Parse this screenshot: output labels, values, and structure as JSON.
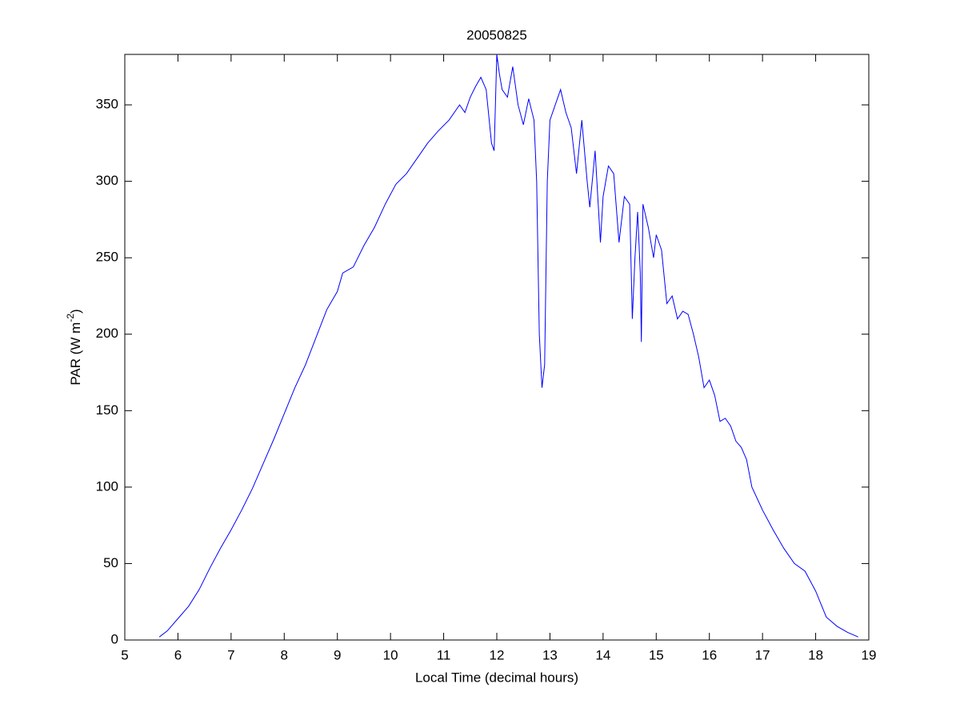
{
  "chart_data": {
    "type": "line",
    "title": "20050825",
    "xlabel": "Local Time (decimal hours)",
    "ylabel": {
      "text": "PAR (W m",
      "superscript": "-2",
      "suffix": ")"
    },
    "xlim": [
      5,
      19
    ],
    "ylim": [
      0,
      383
    ],
    "xticks": [
      5,
      6,
      7,
      8,
      9,
      10,
      11,
      12,
      13,
      14,
      15,
      16,
      17,
      18,
      19
    ],
    "yticks": [
      0,
      50,
      100,
      150,
      200,
      250,
      300,
      350
    ],
    "grid": false,
    "series": [
      {
        "color": "#0000ff",
        "x": [
          5.65,
          5.8,
          6.0,
          6.2,
          6.4,
          6.6,
          6.8,
          7.0,
          7.2,
          7.4,
          7.6,
          7.8,
          8.0,
          8.2,
          8.4,
          8.6,
          8.8,
          9.0,
          9.1,
          9.3,
          9.5,
          9.7,
          9.9,
          10.1,
          10.3,
          10.5,
          10.7,
          10.9,
          11.1,
          11.3,
          11.4,
          11.5,
          11.6,
          11.7,
          11.8,
          11.9,
          11.95,
          12.0,
          12.05,
          12.1,
          12.2,
          12.3,
          12.4,
          12.5,
          12.6,
          12.7,
          12.75,
          12.8,
          12.85,
          12.9,
          12.95,
          13.0,
          13.1,
          13.2,
          13.3,
          13.4,
          13.5,
          13.6,
          13.7,
          13.75,
          13.85,
          13.95,
          14.0,
          14.1,
          14.2,
          14.3,
          14.4,
          14.5,
          14.55,
          14.6,
          14.65,
          14.7,
          14.72,
          14.75,
          14.85,
          14.95,
          15.0,
          15.1,
          15.2,
          15.3,
          15.4,
          15.5,
          15.6,
          15.7,
          15.8,
          15.9,
          16.0,
          16.1,
          16.2,
          16.3,
          16.4,
          16.5,
          16.6,
          16.7,
          16.8,
          17.0,
          17.2,
          17.4,
          17.6,
          17.8,
          18.0,
          18.2,
          18.4,
          18.6,
          18.8
        ],
        "values": [
          2,
          6,
          14,
          22,
          33,
          47,
          60,
          72,
          85,
          99,
          115,
          131,
          148,
          165,
          180,
          198,
          216,
          228,
          240,
          244,
          258,
          270,
          285,
          298,
          305,
          315,
          325,
          333,
          340,
          350,
          345,
          355,
          362,
          368,
          360,
          325,
          320,
          383,
          370,
          360,
          355,
          375,
          350,
          337,
          354,
          340,
          300,
          200,
          165,
          180,
          300,
          340,
          350,
          360,
          345,
          335,
          305,
          340,
          300,
          283,
          320,
          260,
          290,
          310,
          305,
          260,
          290,
          285,
          210,
          250,
          280,
          240,
          195,
          285,
          270,
          250,
          265,
          255,
          220,
          225,
          210,
          215,
          213,
          200,
          185,
          165,
          170,
          160,
          143,
          145,
          140,
          130,
          126,
          118,
          100,
          85,
          72,
          60,
          50,
          45,
          32,
          15,
          9,
          5,
          2
        ]
      }
    ]
  }
}
